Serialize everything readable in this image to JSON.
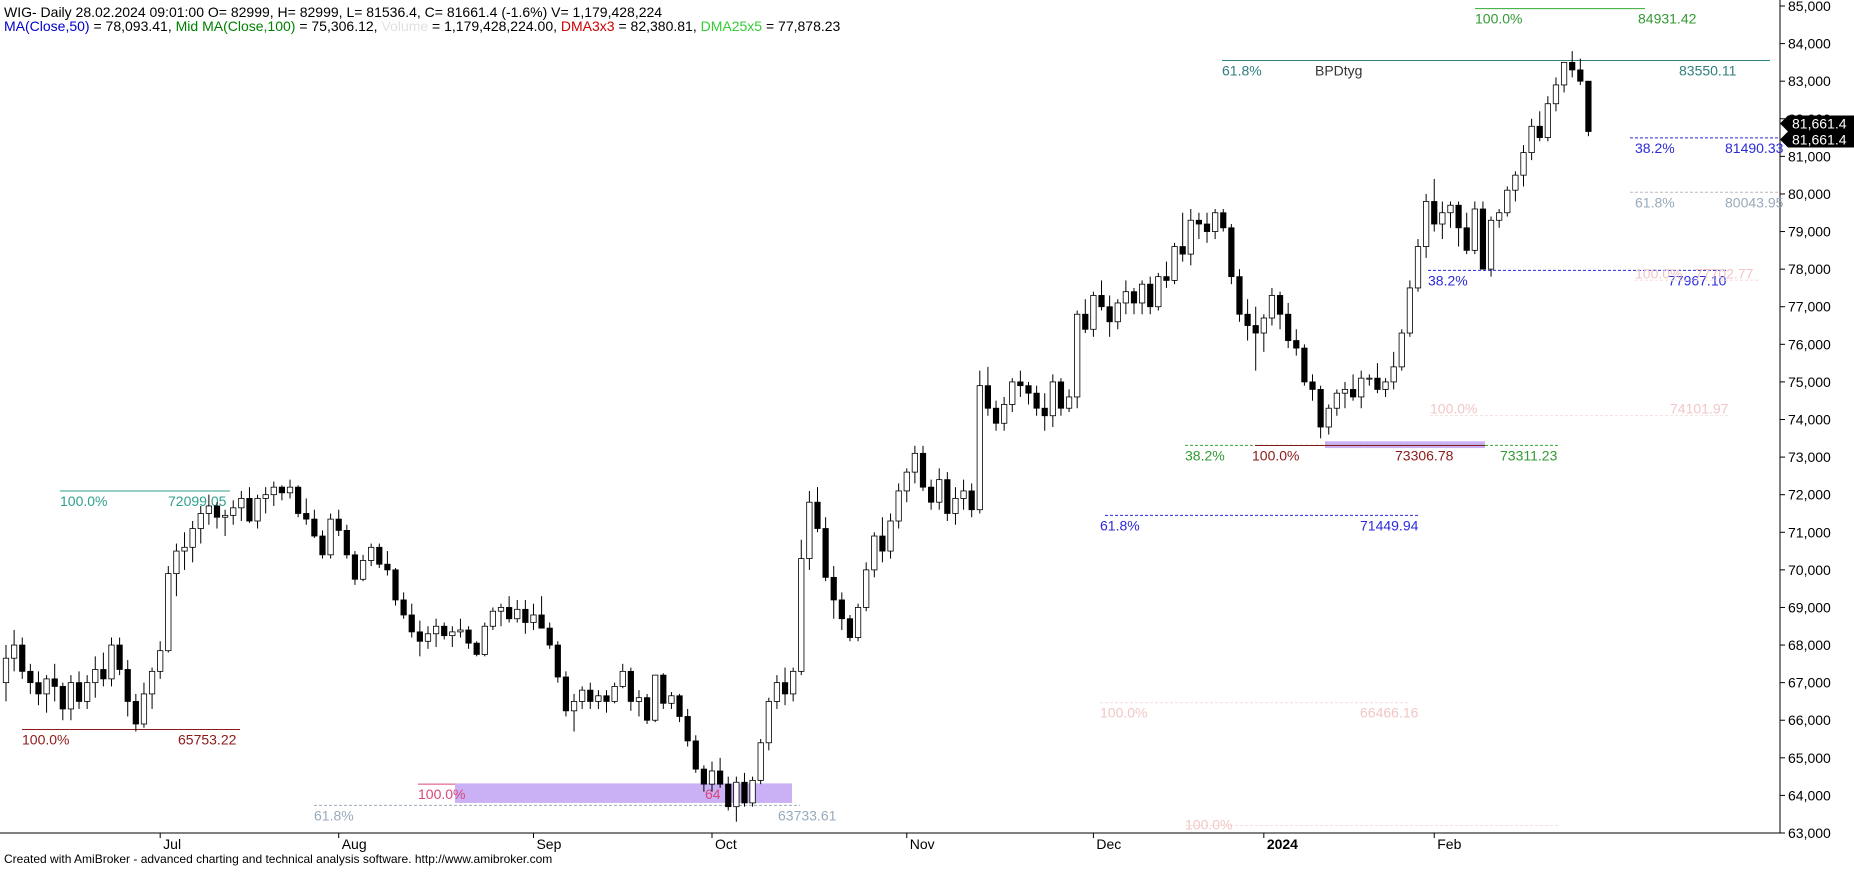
{
  "header": {
    "line1": "WIG- Daily 28.02.2024 09:01:00 O= 82999, H= 82999, L= 81536.4, C= 81661.4 (-1.6%) V= 1,179,428,224",
    "ma50_label": "MA(Close,50)",
    "ma50_value": " = 78,093.41,",
    "ma100_label": " Mid MA(Close,100)",
    "ma100_value": " = 75,306.12,",
    "volume_label": " Volume",
    "volume_value": " = 1,179,428,224.00,",
    "dma3_label": " DMA3x3",
    "dma3_value": " = 82,380.81,",
    "dma25_label": " DMA25x5",
    "dma25_value": " = 77,878.23",
    "colors": {
      "ma50": "#0000cc",
      "ma100": "#008000",
      "volume": "#e0e0e0",
      "dma3": "#cc0000",
      "dma25": "#33cc33"
    }
  },
  "footer": "Created with AmiBroker - advanced charting and technical analysis software. http://www.amibroker.com",
  "chart_data": {
    "type": "candlestick",
    "symbol": "WIG",
    "grid": false,
    "ylim": [
      63000,
      85000
    ],
    "y_ticks": [
      "63,000",
      "64,000",
      "65,000",
      "66,000",
      "67,000",
      "68,000",
      "69,000",
      "70,000",
      "71,000",
      "72,000",
      "73,000",
      "74,000",
      "75,000",
      "76,000",
      "77,000",
      "78,000",
      "79,000",
      "80,000",
      "81,000",
      "82,000",
      "83,000",
      "84,000",
      "85,000"
    ],
    "x_labels": [
      {
        "label": "Jul",
        "bar": 19
      },
      {
        "label": "Aug",
        "bar": 41
      },
      {
        "label": "Sep",
        "bar": 65
      },
      {
        "label": "Oct",
        "bar": 87
      },
      {
        "label": "Nov",
        "bar": 111
      },
      {
        "label": "Dec",
        "bar": 134
      },
      {
        "label": "2024",
        "bar": 155,
        "bold": true
      },
      {
        "label": "Feb",
        "bar": 176
      }
    ],
    "last_price_labels": [
      "81,661.4",
      "81,661.4"
    ],
    "ohlc": [
      [
        67000,
        68000,
        66500,
        67650
      ],
      [
        67650,
        68400,
        67300,
        68000
      ],
      [
        68000,
        68200,
        67100,
        67300
      ],
      [
        67300,
        67500,
        66700,
        67000
      ],
      [
        67000,
        67300,
        66400,
        66700
      ],
      [
        66700,
        67200,
        66200,
        67100
      ],
      [
        67100,
        67500,
        66500,
        66900
      ],
      [
        66900,
        67000,
        66000,
        66300
      ],
      [
        66300,
        67200,
        66000,
        67000
      ],
      [
        67000,
        67300,
        66300,
        66500
      ],
      [
        66500,
        67200,
        66300,
        67000
      ],
      [
        67000,
        67700,
        66600,
        67350
      ],
      [
        67350,
        67800,
        66900,
        67100
      ],
      [
        67100,
        68200,
        66900,
        68000
      ],
      [
        68000,
        68200,
        67200,
        67350
      ],
      [
        67350,
        67600,
        66100,
        66500
      ],
      [
        66500,
        66700,
        65700,
        65900
      ],
      [
        65900,
        67000,
        65800,
        66700
      ],
      [
        66700,
        67400,
        66300,
        67300
      ],
      [
        67300,
        68100,
        67100,
        67850
      ],
      [
        67850,
        70100,
        67800,
        69900
      ],
      [
        69900,
        70700,
        69300,
        70500
      ],
      [
        70500,
        71000,
        70000,
        70600
      ],
      [
        70600,
        71300,
        70200,
        71100
      ],
      [
        71100,
        71700,
        70700,
        71500
      ],
      [
        71500,
        72000,
        71200,
        71700
      ],
      [
        71700,
        71800,
        71100,
        71400
      ],
      [
        71400,
        71600,
        70900,
        71450
      ],
      [
        71450,
        71850,
        71200,
        71650
      ],
      [
        71650,
        72100,
        71300,
        71900
      ],
      [
        71900,
        72200,
        71250,
        71300
      ],
      [
        71300,
        72000,
        71100,
        71900
      ],
      [
        71900,
        72200,
        71500,
        72000
      ],
      [
        72000,
        72350,
        71700,
        72200
      ],
      [
        72200,
        72250,
        71850,
        72050
      ],
      [
        72050,
        72400,
        71900,
        72200
      ],
      [
        72200,
        72250,
        71400,
        71500
      ],
      [
        71500,
        71900,
        71200,
        71350
      ],
      [
        71350,
        71600,
        70850,
        70900
      ],
      [
        70900,
        71050,
        70300,
        70400
      ],
      [
        70400,
        71500,
        70300,
        71350
      ],
      [
        71350,
        71600,
        70900,
        71050
      ],
      [
        71050,
        71200,
        70300,
        70400
      ],
      [
        70400,
        70500,
        69600,
        69750
      ],
      [
        69750,
        70400,
        69700,
        70250
      ],
      [
        70250,
        70700,
        70100,
        70600
      ],
      [
        70600,
        70700,
        70050,
        70150
      ],
      [
        70150,
        70500,
        69850,
        70000
      ],
      [
        70000,
        70050,
        69050,
        69200
      ],
      [
        69200,
        69400,
        68700,
        68800
      ],
      [
        68800,
        69100,
        68200,
        68350
      ],
      [
        68350,
        68650,
        67700,
        68100
      ],
      [
        68100,
        68500,
        67900,
        68300
      ],
      [
        68300,
        68700,
        67950,
        68500
      ],
      [
        68500,
        68600,
        68150,
        68250
      ],
      [
        68250,
        68500,
        67950,
        68350
      ],
      [
        68350,
        68700,
        68200,
        68400
      ],
      [
        68400,
        68500,
        67900,
        68050
      ],
      [
        68050,
        68100,
        67700,
        67750
      ],
      [
        67750,
        68600,
        67700,
        68500
      ],
      [
        68500,
        69000,
        68400,
        68900
      ],
      [
        68900,
        69100,
        68500,
        69000
      ],
      [
        69000,
        69300,
        68600,
        68700
      ],
      [
        68700,
        69200,
        68600,
        68950
      ],
      [
        68950,
        69200,
        68300,
        68600
      ],
      [
        68600,
        69100,
        68400,
        68800
      ],
      [
        68800,
        69300,
        68500,
        68450
      ],
      [
        68450,
        68600,
        67900,
        68000
      ],
      [
        68000,
        68100,
        67000,
        67150
      ],
      [
        67150,
        67300,
        66100,
        66250
      ],
      [
        66250,
        66700,
        65700,
        66500
      ],
      [
        66500,
        66900,
        66300,
        66800
      ],
      [
        66800,
        67000,
        66300,
        66500
      ],
      [
        66500,
        66800,
        66300,
        66650
      ],
      [
        66650,
        66800,
        66200,
        66500
      ],
      [
        66500,
        67000,
        66450,
        66900
      ],
      [
        66900,
        67500,
        66850,
        67300
      ],
      [
        67300,
        67400,
        66250,
        66500
      ],
      [
        66500,
        66800,
        66100,
        66600
      ],
      [
        66600,
        66700,
        65900,
        66000
      ],
      [
        66000,
        67200,
        65950,
        67200
      ],
      [
        67200,
        67250,
        66300,
        66450
      ],
      [
        66450,
        66750,
        66300,
        66650
      ],
      [
        66650,
        66700,
        65950,
        66100
      ],
      [
        66100,
        66300,
        65300,
        65450
      ],
      [
        65450,
        65600,
        64600,
        64700
      ],
      [
        64700,
        64800,
        64100,
        64300
      ],
      [
        64300,
        64900,
        64100,
        64650
      ],
      [
        64650,
        65000,
        64200,
        64300
      ],
      [
        64300,
        64500,
        63600,
        63700
      ],
      [
        63700,
        64500,
        63300,
        64350
      ],
      [
        64350,
        64600,
        63700,
        63800
      ],
      [
        63800,
        64500,
        63700,
        64400
      ],
      [
        64400,
        65500,
        64300,
        65400
      ],
      [
        65400,
        66600,
        65200,
        66500
      ],
      [
        66500,
        67200,
        66300,
        67000
      ],
      [
        67000,
        67400,
        66400,
        66700
      ],
      [
        66700,
        67400,
        66500,
        67300
      ],
      [
        67300,
        70800,
        67200,
        70300
      ],
      [
        70300,
        72100,
        70000,
        71800
      ],
      [
        71800,
        72200,
        71000,
        71100
      ],
      [
        71100,
        71400,
        69700,
        69800
      ],
      [
        69800,
        70100,
        68700,
        69200
      ],
      [
        69200,
        69400,
        68400,
        68700
      ],
      [
        68700,
        68800,
        68100,
        68200
      ],
      [
        68200,
        69100,
        68100,
        69000
      ],
      [
        69000,
        70200,
        68900,
        70000
      ],
      [
        70000,
        71000,
        69800,
        70900
      ],
      [
        70900,
        71400,
        70200,
        70500
      ],
      [
        70500,
        71500,
        70300,
        71300
      ],
      [
        71300,
        72300,
        71100,
        72100
      ],
      [
        72100,
        72700,
        71800,
        72600
      ],
      [
        72600,
        73300,
        72300,
        73100
      ],
      [
        73100,
        73300,
        72100,
        72200
      ],
      [
        72200,
        72400,
        71600,
        71800
      ],
      [
        71800,
        72700,
        71600,
        72400
      ],
      [
        72400,
        72600,
        71300,
        71500
      ],
      [
        71500,
        72200,
        71200,
        71900
      ],
      [
        71900,
        72400,
        71600,
        72100
      ],
      [
        72100,
        72300,
        71400,
        71600
      ],
      [
        71600,
        75300,
        71500,
        74900
      ],
      [
        74900,
        75400,
        74100,
        74300
      ],
      [
        74300,
        74500,
        73700,
        73900
      ],
      [
        73900,
        74600,
        73700,
        74400
      ],
      [
        74400,
        75100,
        74200,
        75000
      ],
      [
        75000,
        75300,
        74600,
        74900
      ],
      [
        74900,
        75000,
        74400,
        74700
      ],
      [
        74700,
        74900,
        74100,
        74300
      ],
      [
        74300,
        74700,
        73700,
        74100
      ],
      [
        74100,
        75200,
        73800,
        75000
      ],
      [
        75000,
        75100,
        74100,
        74300
      ],
      [
        74300,
        74800,
        74200,
        74600
      ],
      [
        74600,
        76900,
        74300,
        76800
      ],
      [
        76800,
        77200,
        76300,
        76400
      ],
      [
        76400,
        77400,
        76200,
        77300
      ],
      [
        77300,
        77700,
        76900,
        77000
      ],
      [
        77000,
        77300,
        76200,
        76600
      ],
      [
        76600,
        77200,
        76400,
        77100
      ],
      [
        77100,
        77700,
        76800,
        77400
      ],
      [
        77400,
        77500,
        76800,
        77100
      ],
      [
        77100,
        77700,
        76800,
        77600
      ],
      [
        77600,
        77800,
        76800,
        77000
      ],
      [
        77000,
        77900,
        76900,
        77800
      ],
      [
        77800,
        78200,
        77500,
        77700
      ],
      [
        77700,
        78700,
        77600,
        78600
      ],
      [
        78600,
        79500,
        78200,
        78400
      ],
      [
        78400,
        79600,
        78100,
        79300
      ],
      [
        79300,
        79500,
        78800,
        79200
      ],
      [
        79200,
        79500,
        78700,
        79000
      ],
      [
        79000,
        79600,
        78800,
        79500
      ],
      [
        79500,
        79600,
        79000,
        79100
      ],
      [
        79100,
        79200,
        77600,
        77800
      ],
      [
        77800,
        78000,
        76600,
        76800
      ],
      [
        76800,
        77200,
        76100,
        76500
      ],
      [
        76500,
        77000,
        75300,
        76300
      ],
      [
        76300,
        76800,
        75800,
        76700
      ],
      [
        76700,
        77500,
        76500,
        77300
      ],
      [
        77300,
        77400,
        76400,
        76800
      ],
      [
        76800,
        77100,
        75900,
        76100
      ],
      [
        76100,
        76400,
        75700,
        75900
      ],
      [
        75900,
        76000,
        74900,
        75000
      ],
      [
        75000,
        75200,
        74500,
        74800
      ],
      [
        74800,
        74900,
        73500,
        73800
      ],
      [
        73800,
        74400,
        73600,
        74300
      ],
      [
        74300,
        74800,
        74100,
        74700
      ],
      [
        74700,
        75000,
        74300,
        74800
      ],
      [
        74800,
        75200,
        74500,
        74600
      ],
      [
        74600,
        75300,
        74300,
        75100
      ],
      [
        75100,
        75200,
        74900,
        75100
      ],
      [
        75100,
        75500,
        74700,
        74800
      ],
      [
        74800,
        75100,
        74600,
        75000
      ],
      [
        75000,
        75800,
        74800,
        75400
      ],
      [
        75400,
        76400,
        75300,
        76300
      ],
      [
        76300,
        77700,
        76200,
        77500
      ],
      [
        77500,
        78800,
        77400,
        78600
      ],
      [
        78600,
        80000,
        78300,
        79800
      ],
      [
        79800,
        80400,
        79000,
        79200
      ],
      [
        79200,
        79800,
        78800,
        79500
      ],
      [
        79500,
        79800,
        79100,
        79700
      ],
      [
        79700,
        79800,
        78600,
        79100
      ],
      [
        79100,
        79500,
        78400,
        78500
      ],
      [
        78500,
        79800,
        78400,
        79600
      ],
      [
        79600,
        79800,
        78000,
        78000
      ],
      [
        78000,
        79400,
        77800,
        79300
      ],
      [
        79300,
        79600,
        79100,
        79500
      ],
      [
        79500,
        80200,
        79400,
        80100
      ],
      [
        80100,
        80600,
        79800,
        80500
      ],
      [
        80500,
        81300,
        80200,
        81100
      ],
      [
        81100,
        82000,
        80900,
        81800
      ],
      [
        81800,
        82200,
        81400,
        81500
      ],
      [
        81500,
        82600,
        81400,
        82400
      ],
      [
        82400,
        83100,
        82200,
        82900
      ],
      [
        82900,
        83500,
        82700,
        83500
      ],
      [
        83500,
        83800,
        83100,
        83300
      ],
      [
        83300,
        83600,
        82900,
        83000
      ],
      [
        82999,
        82999,
        81536.4,
        81661.4
      ]
    ],
    "annotations": [
      {
        "id": "bpd",
        "label_left": "61.8%",
        "label_text": "BPDtyg",
        "label_right": "83550.11",
        "color": "#2f7f7f"
      },
      {
        "id": "f849",
        "label_left": "100.0%",
        "label_right": "84931.42",
        "color": "#339933"
      },
      {
        "id": "f8149",
        "label_left": "38.2%",
        "label_right": "81490.33",
        "color": "#2b2bd9"
      },
      {
        "id": "f8004",
        "label_left": "61.8%",
        "label_right": "80043.95",
        "color": "#99aabb"
      },
      {
        "id": "f7796",
        "label_left": "38.2%",
        "label_right": "77967.10",
        "color": "#2b2bd9"
      },
      {
        "id": "f7770",
        "label_left": "100.0%",
        "label_right": "77702.77",
        "color": "#f2c6c6"
      },
      {
        "id": "f7410",
        "label_left": "100.0%",
        "label_right": "74101.97",
        "color": "#f2c6c6"
      },
      {
        "id": "f7333a",
        "label_left": "38.2%",
        "label_right": "73311.23",
        "color": "#339933"
      },
      {
        "id": "f7333b",
        "label_left": "100.0%",
        "label_right": "73306.78",
        "color": "#8b1a1a"
      },
      {
        "id": "f7144",
        "label_left": "61.8%",
        "label_right": "71449.94",
        "color": "#2b2bd9"
      },
      {
        "id": "f7209",
        "label_left": "100.0%",
        "label_right": "72099.05",
        "color": "#2f9f8f"
      },
      {
        "id": "f6575",
        "label_left": "100.0%",
        "label_right": "65753.22",
        "color": "#8b1a1a"
      },
      {
        "id": "f6646",
        "label_left": "100.0%",
        "label_right": "66466.16",
        "color": "#f2c6c6"
      },
      {
        "id": "f6373",
        "label_left": "61.8%",
        "label_right": "63733.61",
        "color": "#99aabb"
      },
      {
        "id": "f6430",
        "label_left": "100.0%",
        "label_right": "64",
        "color": "#d9467a"
      },
      {
        "id": "f6320",
        "label_left": "100.0%",
        "label_right": "",
        "color": "#f2c6c6"
      }
    ]
  }
}
